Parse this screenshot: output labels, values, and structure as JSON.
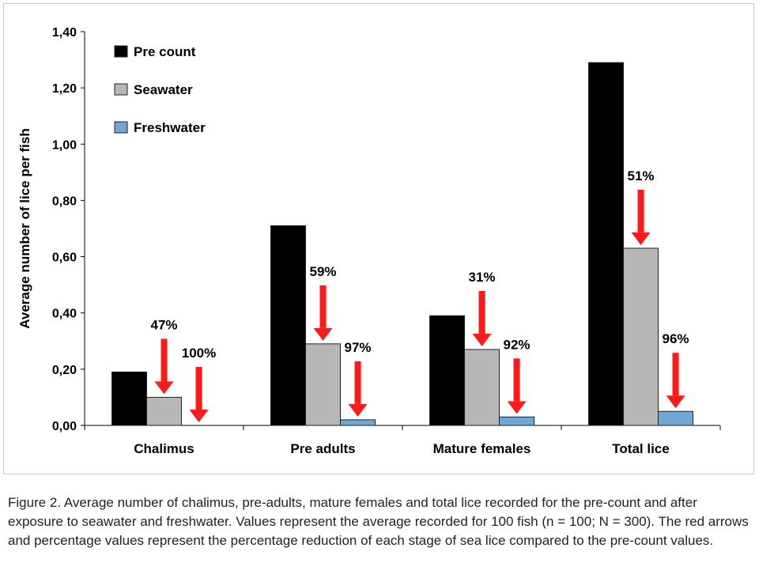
{
  "caption": "Figure 2. Average number of chalimus, pre-adults, mature females and total lice recorded for the pre-count and after exposure to seawater and freshwater. Values represent the average recorded for 100 fish (n = 100; N = 300). The red arrows and percentage values represent the percentage reduction of each stage of sea lice compared to the pre-count values.",
  "chart_data": {
    "type": "bar",
    "title": "",
    "xlabel": "",
    "ylabel": "Average number of lice per fish",
    "ylim": [
      0,
      1.4
    ],
    "yticks": [
      0,
      0.2,
      0.4,
      0.6,
      0.8,
      1.0,
      1.2,
      1.4
    ],
    "ytick_labels": [
      "0,00",
      "0,20",
      "0,40",
      "0,60",
      "0,80",
      "1,00",
      "1,20",
      "1,40"
    ],
    "categories": [
      "Chalimus",
      "Pre adults",
      "Mature females",
      "Total lice"
    ],
    "series": [
      {
        "name": "Pre count",
        "color": "#000000",
        "values": [
          0.19,
          0.71,
          0.39,
          1.29
        ]
      },
      {
        "name": "Seawater",
        "color": "#b7b7b7",
        "values": [
          0.1,
          0.29,
          0.27,
          0.63
        ]
      },
      {
        "name": "Freshwater",
        "color": "#6fa7d9",
        "values": [
          0.0,
          0.02,
          0.03,
          0.05
        ]
      }
    ],
    "legend_position": "top-left",
    "grid": false,
    "reductions": {
      "Seawater": [
        "47%",
        "59%",
        "31%",
        "51%"
      ],
      "Freshwater": [
        "100%",
        "97%",
        "92%",
        "96%"
      ]
    },
    "arrow_color": "#ff1a1a"
  }
}
